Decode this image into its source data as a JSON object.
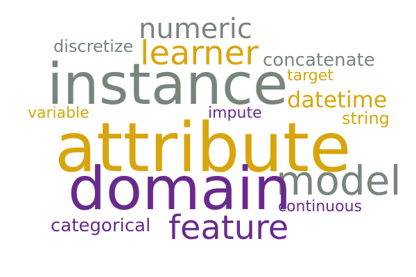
{
  "words": {
    "numeric": "numeric",
    "discretize": "discretize",
    "learner": "learner",
    "concatenate": "concatenate",
    "instance": "instance",
    "target": "target",
    "datetime": "datetime",
    "variable": "variable",
    "impute": "impute",
    "string": "string",
    "attribute": "attribute",
    "model": "model",
    "domain": "domain",
    "continuous": "continuous",
    "categorical": "categorical",
    "feature": "feature"
  },
  "colors": {
    "gray": "#77857a",
    "gold": "#d9a50d",
    "purple": "#6a2a8d"
  }
}
